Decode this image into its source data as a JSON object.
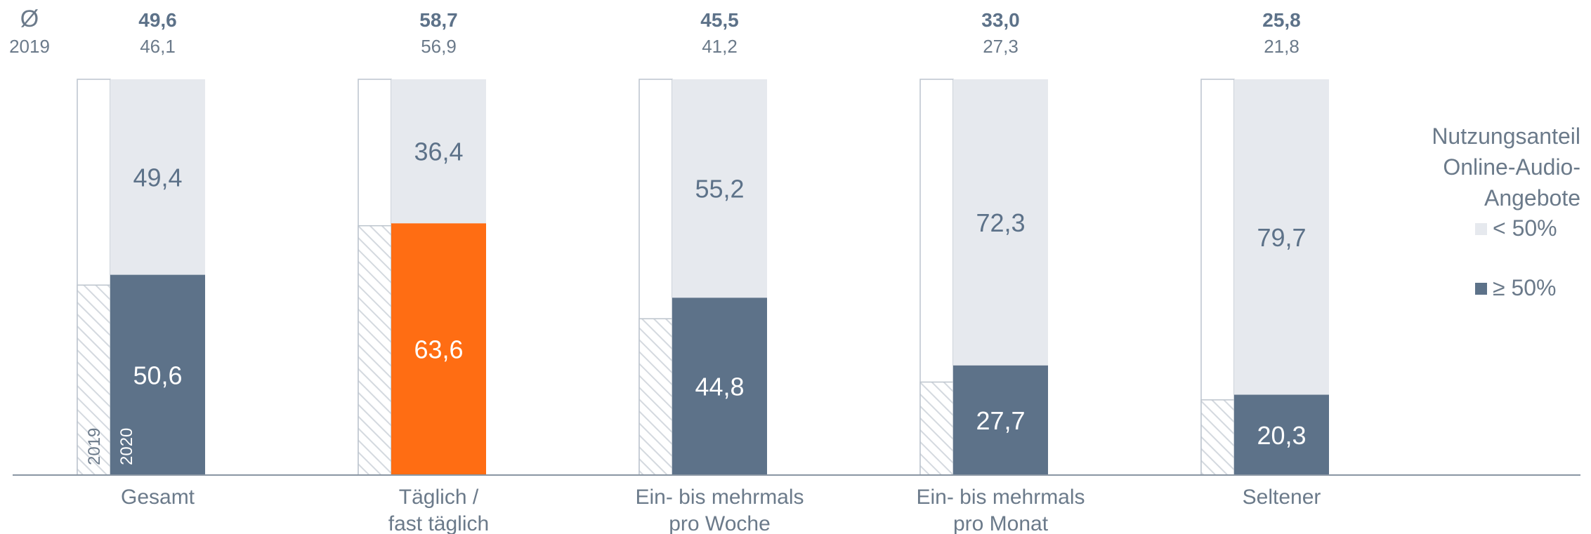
{
  "header": {
    "avg_symbol": "Ø",
    "prev_year_label": "2019"
  },
  "legend": {
    "title_lines": [
      "Nutzungsanteil",
      "Online-Audio-",
      "Angebote"
    ],
    "items": [
      {
        "label": "< 50%",
        "color": "#e6e9ee"
      },
      {
        "label": "≥ 50%",
        "color": "#5d7289"
      }
    ]
  },
  "year_labels": {
    "prev": "2019",
    "curr": "2020"
  },
  "chart_data": {
    "type": "bar",
    "stacked": true,
    "categories": [
      [
        "Gesamt"
      ],
      [
        "Täglich /",
        "fast täglich"
      ],
      [
        "Ein- bis mehrmals",
        "pro Woche"
      ],
      [
        "Ein- bis mehrmals",
        "pro Monat"
      ],
      [
        "Seltener"
      ]
    ],
    "avg_2020": [
      "49,6",
      "58,7",
      "45,5",
      "33,0",
      "25,8"
    ],
    "avg_2019": [
      "46,1",
      "56,9",
      "41,2",
      "27,3",
      "21,8"
    ],
    "share_ge50_2019": [
      48.0,
      63.0,
      39.5,
      23.5,
      19.0
    ],
    "series": [
      {
        "name": "≥ 50%",
        "values": [
          50.6,
          63.6,
          44.8,
          27.7,
          20.3
        ],
        "labels": [
          "50,6",
          "63,6",
          "44,8",
          "27,7",
          "20,3"
        ]
      },
      {
        "name": "< 50%",
        "values": [
          49.4,
          36.4,
          55.2,
          72.3,
          79.7
        ],
        "labels": [
          "49,4",
          "36,4",
          "55,2",
          "72,3",
          "79,7"
        ]
      }
    ],
    "highlight_index": 1,
    "colors": {
      "ge50": "#5d7289",
      "lt50": "#e6e9ee",
      "highlight": "#ff6d13"
    },
    "ylim": [
      0,
      100
    ]
  }
}
